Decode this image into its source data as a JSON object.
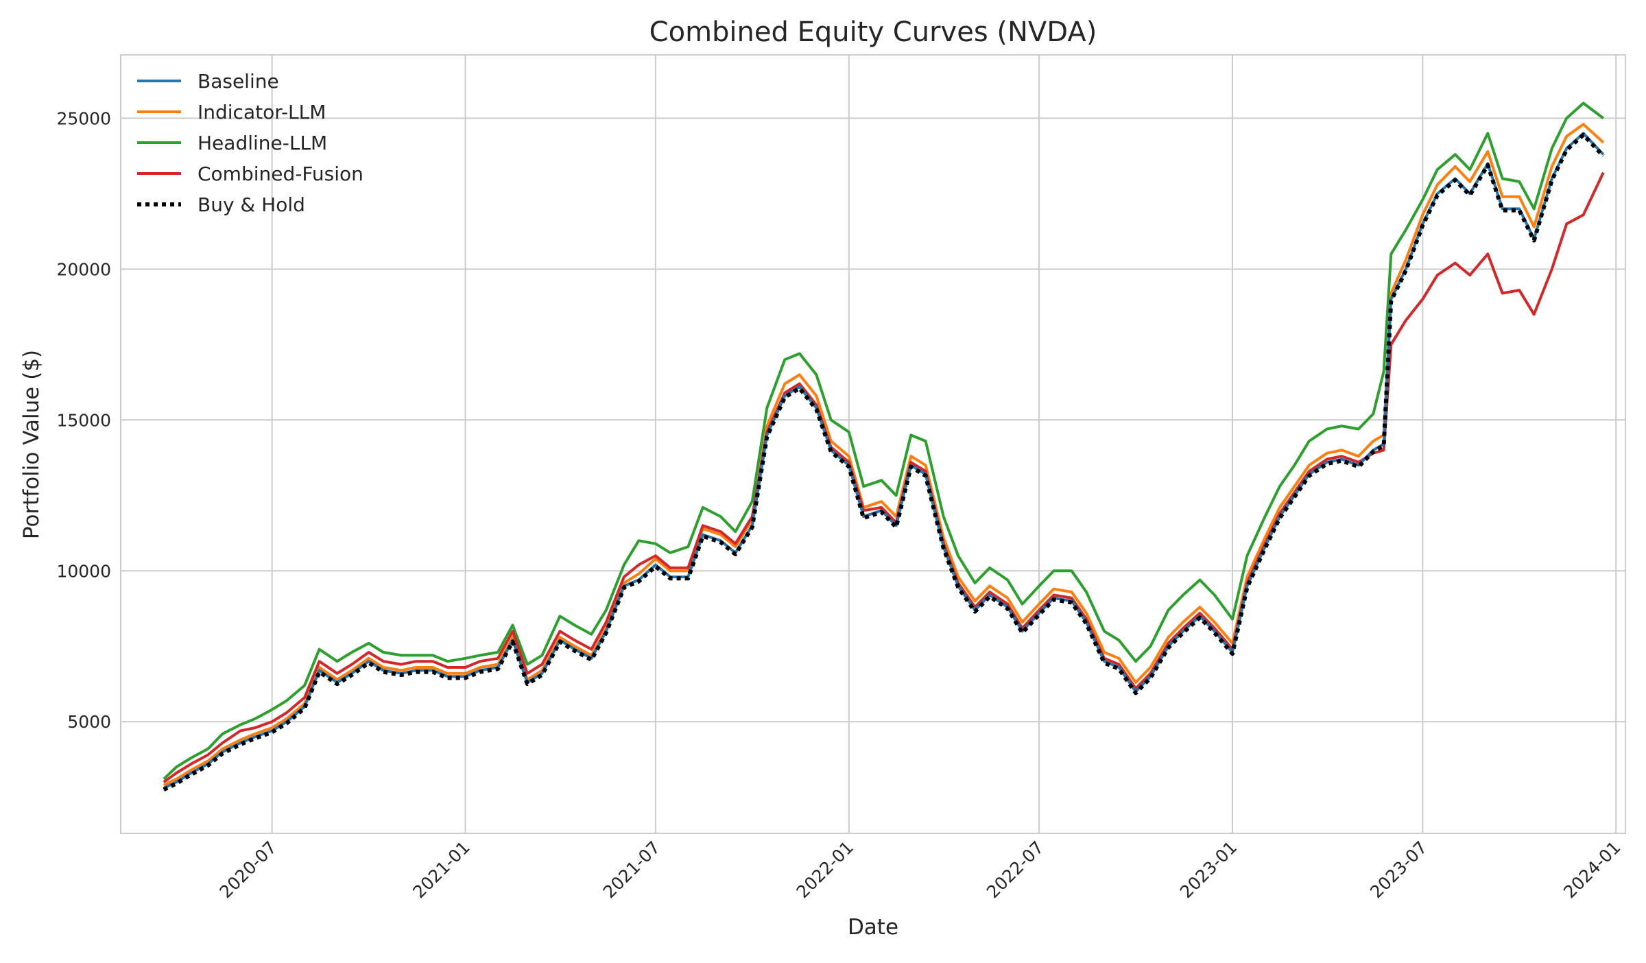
{
  "chart_data": {
    "type": "line",
    "title": "Combined Equity Curves (NVDA)",
    "xlabel": "Date",
    "ylabel": "Portfolio Value ($)",
    "x_ticks": [
      "2020-07",
      "2021-01",
      "2021-07",
      "2022-01",
      "2022-07",
      "2023-01",
      "2023-07",
      "2024-01"
    ],
    "y_ticks": [
      5000,
      10000,
      15000,
      20000,
      25000
    ],
    "xlim": [
      "2020-02-08",
      "2024-01-10"
    ],
    "ylim": [
      1300,
      27100
    ],
    "grid": true,
    "legend_position": "top-left",
    "colors": {
      "Baseline": "#1f77b4",
      "Indicator-LLM": "#ff7f0e",
      "Headline-LLM": "#2ca02c",
      "Combined-Fusion": "#d62728",
      "Buy & Hold": "#000000",
      "grid": "#cccccc",
      "text": "#262626"
    },
    "x": [
      "2020-03-20",
      "2020-04-01",
      "2020-04-15",
      "2020-05-01",
      "2020-05-15",
      "2020-06-01",
      "2020-06-15",
      "2020-07-01",
      "2020-07-15",
      "2020-08-01",
      "2020-08-15",
      "2020-09-01",
      "2020-09-15",
      "2020-10-01",
      "2020-10-15",
      "2020-11-01",
      "2020-11-15",
      "2020-12-01",
      "2020-12-15",
      "2021-01-01",
      "2021-01-15",
      "2021-02-01",
      "2021-02-15",
      "2021-03-01",
      "2021-03-15",
      "2021-04-01",
      "2021-04-15",
      "2021-05-01",
      "2021-05-15",
      "2021-06-01",
      "2021-06-15",
      "2021-07-01",
      "2021-07-15",
      "2021-08-01",
      "2021-08-15",
      "2021-09-01",
      "2021-09-15",
      "2021-10-01",
      "2021-10-15",
      "2021-11-01",
      "2021-11-15",
      "2021-12-01",
      "2021-12-15",
      "2022-01-01",
      "2022-01-15",
      "2022-02-01",
      "2022-02-15",
      "2022-03-01",
      "2022-03-15",
      "2022-04-01",
      "2022-04-15",
      "2022-05-01",
      "2022-05-15",
      "2022-06-01",
      "2022-06-15",
      "2022-07-01",
      "2022-07-15",
      "2022-08-01",
      "2022-08-15",
      "2022-09-01",
      "2022-09-15",
      "2022-10-01",
      "2022-10-15",
      "2022-11-01",
      "2022-11-15",
      "2022-12-01",
      "2022-12-15",
      "2023-01-01",
      "2023-01-15",
      "2023-02-01",
      "2023-02-15",
      "2023-03-01",
      "2023-03-15",
      "2023-04-01",
      "2023-04-15",
      "2023-05-01",
      "2023-05-15",
      "2023-05-25",
      "2023-06-01",
      "2023-06-15",
      "2023-07-01",
      "2023-07-15",
      "2023-08-01",
      "2023-08-15",
      "2023-09-01",
      "2023-09-15",
      "2023-10-01",
      "2023-10-15",
      "2023-11-01",
      "2023-11-15",
      "2023-12-01",
      "2023-12-20"
    ],
    "series": [
      {
        "name": "Baseline",
        "style": "solid",
        "values": [
          2800,
          3000,
          3300,
          3600,
          4000,
          4300,
          4500,
          4700,
          5000,
          5500,
          6700,
          6300,
          6600,
          7000,
          6700,
          6600,
          6700,
          6700,
          6500,
          6500,
          6700,
          6800,
          7700,
          6300,
          6600,
          7700,
          7400,
          7100,
          8000,
          9500,
          9700,
          10200,
          9800,
          9800,
          11200,
          11000,
          10600,
          11500,
          14500,
          15800,
          16100,
          15400,
          14000,
          13500,
          11800,
          12000,
          11500,
          13500,
          13200,
          10800,
          9500,
          8700,
          9200,
          8800,
          8000,
          8600,
          9100,
          9000,
          8300,
          7000,
          6800,
          6000,
          6500,
          7500,
          8000,
          8500,
          8000,
          7300,
          9500,
          10800,
          11800,
          12500,
          13200,
          13600,
          13700,
          13500,
          14000,
          14200,
          19000,
          20000,
          21500,
          22500,
          23000,
          22500,
          23500,
          22000,
          22000,
          21000,
          23000,
          24000,
          24500,
          23800
        ]
      },
      {
        "name": "Indicator-LLM",
        "style": "solid",
        "values": [
          2900,
          3100,
          3400,
          3700,
          4100,
          4400,
          4600,
          4800,
          5100,
          5600,
          6800,
          6400,
          6700,
          7100,
          6800,
          6700,
          6800,
          6800,
          6600,
          6600,
          6800,
          6900,
          7800,
          6400,
          6700,
          7800,
          7500,
          7200,
          8100,
          9600,
          9900,
          10400,
          10000,
          10000,
          11400,
          11200,
          10800,
          11700,
          14800,
          16200,
          16500,
          15800,
          14300,
          13800,
          12100,
          12300,
          11800,
          13800,
          13500,
          11100,
          9800,
          9000,
          9500,
          9100,
          8300,
          8900,
          9400,
          9300,
          8600,
          7300,
          7100,
          6300,
          6800,
          7800,
          8300,
          8800,
          8300,
          7600,
          9800,
          11100,
          12100,
          12800,
          13500,
          13900,
          14000,
          13800,
          14300,
          14500,
          19200,
          20300,
          21800,
          22800,
          23400,
          22900,
          23900,
          22400,
          22400,
          21400,
          23400,
          24400,
          24800,
          24200
        ]
      },
      {
        "name": "Headline-LLM",
        "style": "solid",
        "values": [
          3100,
          3500,
          3800,
          4100,
          4600,
          4900,
          5100,
          5400,
          5700,
          6200,
          7400,
          7000,
          7300,
          7600,
          7300,
          7200,
          7200,
          7200,
          7000,
          7100,
          7200,
          7300,
          8200,
          6900,
          7200,
          8500,
          8200,
          7900,
          8700,
          10200,
          11000,
          10900,
          10600,
          10800,
          12100,
          11800,
          11300,
          12300,
          15400,
          17000,
          17200,
          16500,
          15000,
          14600,
          12800,
          13000,
          12500,
          14500,
          14300,
          11800,
          10500,
          9600,
          10100,
          9700,
          8900,
          9500,
          10000,
          10000,
          9300,
          8000,
          7700,
          7000,
          7500,
          8700,
          9200,
          9700,
          9200,
          8400,
          10500,
          11800,
          12800,
          13500,
          14300,
          14700,
          14800,
          14700,
          15200,
          16600,
          20500,
          21300,
          22300,
          23300,
          23800,
          23300,
          24500,
          23000,
          22900,
          22000,
          24000,
          25000,
          25500,
          25000
        ]
      },
      {
        "name": "Combined-Fusion",
        "style": "solid",
        "values": [
          3000,
          3300,
          3600,
          3900,
          4300,
          4700,
          4800,
          5000,
          5300,
          5800,
          7000,
          6600,
          6900,
          7300,
          7000,
          6900,
          7000,
          7000,
          6800,
          6800,
          7000,
          7100,
          8000,
          6600,
          6900,
          8000,
          7700,
          7400,
          8300,
          9800,
          10200,
          10500,
          10100,
          10100,
          11500,
          11300,
          10900,
          11800,
          14600,
          15900,
          16200,
          15500,
          14100,
          13600,
          12000,
          12100,
          11600,
          13600,
          13300,
          10900,
          9600,
          8800,
          9300,
          8900,
          8100,
          8700,
          9200,
          9100,
          8400,
          7100,
          6900,
          6100,
          6600,
          7600,
          8100,
          8600,
          8100,
          7400,
          9600,
          10900,
          11900,
          12600,
          13300,
          13700,
          13800,
          13600,
          13900,
          14000,
          17500,
          18300,
          19000,
          19800,
          20200,
          19800,
          20500,
          19200,
          19300,
          18500,
          20000,
          21500,
          21800,
          23200
        ]
      },
      {
        "name": "Buy & Hold",
        "style": "dotted",
        "values": [
          2750,
          2950,
          3250,
          3550,
          3950,
          4250,
          4450,
          4650,
          4950,
          5450,
          6650,
          6250,
          6550,
          6950,
          6650,
          6550,
          6650,
          6650,
          6450,
          6450,
          6650,
          6750,
          7650,
          6250,
          6550,
          7650,
          7350,
          7050,
          7950,
          9450,
          9650,
          10150,
          9750,
          9750,
          11150,
          10950,
          10550,
          11450,
          14450,
          15750,
          16050,
          15350,
          13950,
          13450,
          11750,
          11950,
          11450,
          13450,
          13150,
          10750,
          9450,
          8650,
          9150,
          8750,
          7950,
          8550,
          9050,
          8950,
          8250,
          6950,
          6750,
          5950,
          6450,
          7450,
          7950,
          8450,
          7950,
          7250,
          9450,
          10750,
          11750,
          12450,
          13150,
          13550,
          13650,
          13450,
          13950,
          14150,
          18950,
          19950,
          21450,
          22450,
          22950,
          22450,
          23450,
          21950,
          21950,
          20950,
          22950,
          23950,
          24450,
          23750
        ]
      }
    ]
  }
}
